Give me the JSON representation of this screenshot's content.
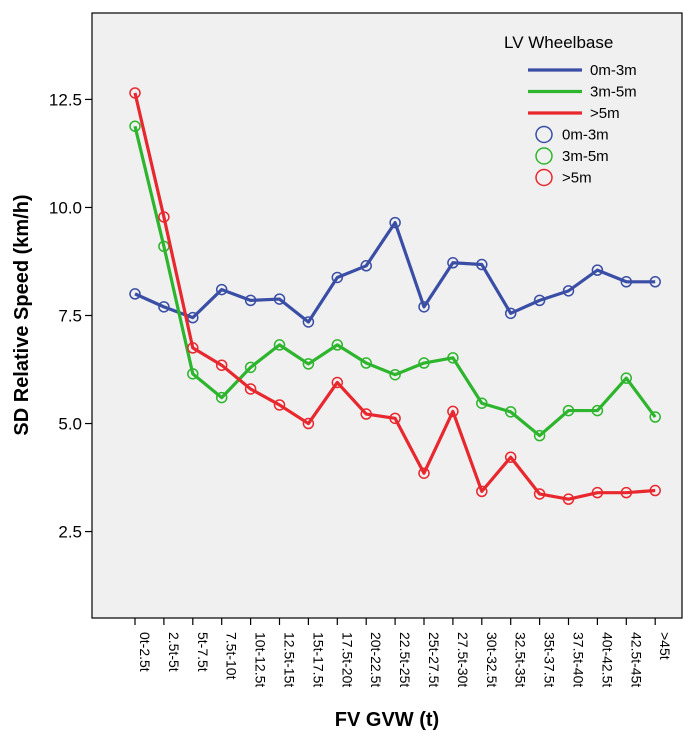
{
  "chart_data": {
    "type": "line",
    "xlabel": "FV GVW (t)",
    "ylabel": "SD Relative Speed (km/h)",
    "ylim": [
      0.5,
      14.5
    ],
    "yticks": [
      2.5,
      5.0,
      7.5,
      10.0,
      12.5
    ],
    "ytick_labels": [
      "2.5",
      "5.0",
      "7.5",
      "10.0",
      "12.5"
    ],
    "categories": [
      "0t-2.5t",
      "2.5t-5t",
      "5t-7.5t",
      "7.5t-10t",
      "10t-12.5t",
      "12.5t-15t",
      "15t-17.5t",
      "17.5t-20t",
      "20t-22.5t",
      "22.5t-25t",
      "25t-27.5t",
      "27.5t-30t",
      "30t-32.5t",
      "32.5t-35t",
      "35t-37.5t",
      "37.5t-40t",
      "40t-42.5t",
      "42.5t-45t",
      ">45t"
    ],
    "grid": false,
    "legend_title": "LV Wheelbase",
    "legend_position": "top-right",
    "series": [
      {
        "name": "0m-3m",
        "color": "#3a4ea6",
        "values": [
          8.0,
          7.7,
          7.45,
          8.1,
          7.85,
          7.88,
          7.35,
          8.38,
          8.65,
          9.65,
          7.7,
          8.72,
          8.68,
          7.55,
          7.85,
          8.07,
          8.55,
          8.28,
          8.28
        ]
      },
      {
        "name": "3m-5m",
        "color": "#2db52d",
        "values": [
          11.88,
          9.1,
          6.15,
          5.6,
          6.3,
          6.82,
          6.38,
          6.82,
          6.4,
          6.13,
          6.4,
          6.52,
          5.47,
          5.27,
          4.72,
          5.3,
          5.3,
          6.05,
          5.15
        ]
      },
      {
        "name": ">5m",
        "color": "#e8282e",
        "values": [
          12.65,
          9.78,
          6.75,
          6.35,
          5.8,
          5.43,
          5.0,
          5.95,
          5.22,
          5.12,
          3.85,
          5.28,
          3.43,
          4.22,
          3.37,
          3.25,
          3.4,
          3.4,
          3.45
        ]
      }
    ]
  }
}
